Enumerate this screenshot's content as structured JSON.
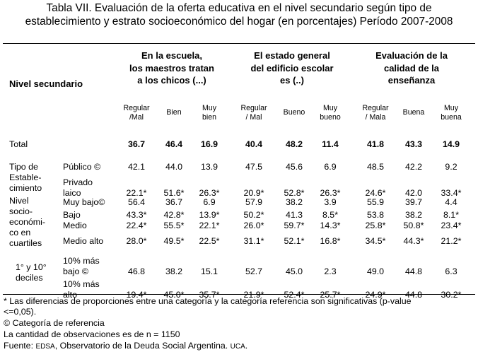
{
  "title": {
    "line1": "Tabla VII. Evaluación de la oferta educativa en el nivel secundario según tipo de",
    "line2": "establecimiento y estrato socioeconómico del hogar (en porcentajes) Período 2007-2008"
  },
  "header": {
    "row_label": "Nivel secundario",
    "groups": [
      {
        "lines": [
          "En la escuela,",
          "los maestros tratan",
          "a los chicos (...)"
        ],
        "subs": [
          [
            "Regular",
            "/Mal"
          ],
          [
            "Bien"
          ],
          [
            "Muy",
            "bien"
          ]
        ]
      },
      {
        "lines": [
          "El estado general",
          "del edificio escolar",
          "es (..)"
        ],
        "subs": [
          [
            "Regular",
            "/ Mal"
          ],
          [
            "Bueno"
          ],
          [
            "Muy",
            "bueno"
          ]
        ]
      },
      {
        "lines": [
          "Evaluación de la",
          "calidad de la",
          "enseñanza"
        ],
        "subs": [
          [
            "Regular",
            "/ Mala"
          ],
          [
            "Buena"
          ],
          [
            "Muy",
            "buena"
          ]
        ]
      }
    ]
  },
  "total": {
    "label": "Total",
    "values": [
      "36.7",
      "46.4",
      "16.9",
      "40.4",
      "48.2",
      "11.4",
      "41.8",
      "43.3",
      "14.9"
    ]
  },
  "categories": [
    {
      "lines": [
        "Tipo de",
        "Estable-",
        "cimiento"
      ]
    },
    {
      "lines": [
        "Nivel",
        "socio-",
        "económi-",
        "co en",
        "cuartiles"
      ]
    },
    {
      "lines": [
        "1° y 10°",
        "deciles"
      ]
    }
  ],
  "rows": [
    {
      "label": [
        "Público ©"
      ],
      "values": [
        "42.1",
        "44.0",
        "13.9",
        "47.5",
        "45.6",
        "6.9",
        "48.5",
        "42.2",
        "9.2"
      ]
    },
    {
      "label": [
        "Privado",
        "laico"
      ],
      "values": [
        "22.1*",
        "51.6*",
        "26.3*",
        "20.9*",
        "52.8*",
        "26.3*",
        "24.6*",
        "42.0",
        "33.4*"
      ]
    },
    {
      "label": [
        "Muy bajo©"
      ],
      "values": [
        "56.4",
        "36.7",
        "6.9",
        "57.9",
        "38.2",
        "3.9",
        "55.9",
        "39.7",
        "4.4"
      ]
    },
    {
      "label": [
        "Bajo"
      ],
      "values": [
        "43.3*",
        "42.8*",
        "13.9*",
        "50.2*",
        "41.3",
        "8.5*",
        "53.8",
        "38.2",
        "8.1*"
      ]
    },
    {
      "label": [
        "Medio"
      ],
      "values": [
        "22.4*",
        "55.5*",
        "22.1*",
        "26.0*",
        "59.7*",
        "14.3*",
        "25.8*",
        "50.8*",
        "23.4*"
      ]
    },
    {
      "label": [
        "Medio alto"
      ],
      "values": [
        "28.0*",
        "49.5*",
        "22.5*",
        "31.1*",
        "52.1*",
        "16.8*",
        "34.5*",
        "44.3*",
        "21.2*"
      ]
    },
    {
      "label": [
        "10% más",
        "bajo ©"
      ],
      "values": [
        "46.8",
        "38.2",
        "15.1",
        "52.7",
        "45.0",
        "2.3",
        "49.0",
        "44.8",
        "6.3"
      ]
    },
    {
      "label": [
        "10% más",
        "alto"
      ],
      "values": [
        "19.4*",
        "45.0*",
        "35.7*",
        "21.9*",
        "52.4*",
        "25.7*",
        "24.9*",
        "44.8",
        "30.2*"
      ]
    }
  ],
  "notes": {
    "line1": "* Las diferencias de proporciones entre una categoría y la categoría referencia son significativas  (p-value",
    "line2": "<=0,05).",
    "line3": "© Categoría de referencia",
    "line4": "La cantidad de observaciones es de n = 1150",
    "source_label": "Fuente: ",
    "source_org1": "EDSA",
    "source_mid": ", Observatorio de la Deuda Social Argentina. ",
    "source_org2": "UCA",
    "source_end": "."
  }
}
